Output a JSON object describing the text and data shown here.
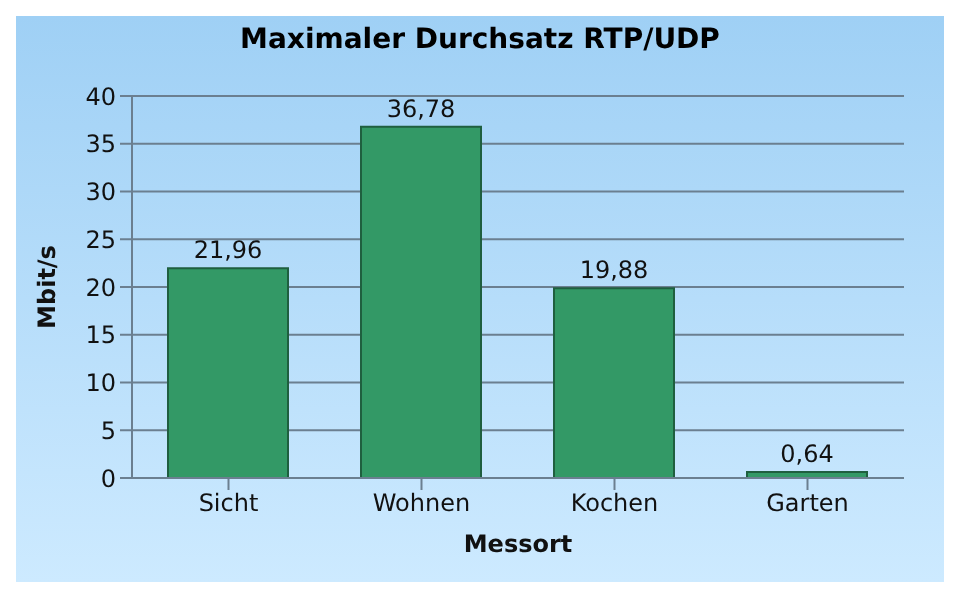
{
  "chart_data": {
    "type": "bar",
    "title": "Maximaler Durchsatz RTP/UDP",
    "xlabel": "Messort",
    "ylabel": "Mbit/s",
    "categories": [
      "Sicht",
      "Wohnen",
      "Kochen",
      "Garten"
    ],
    "values": [
      21.96,
      36.78,
      19.88,
      0.64
    ],
    "value_labels": [
      "21,96",
      "36,78",
      "19,88",
      "0,64"
    ],
    "color": "#339966",
    "ylim": [
      0,
      40
    ],
    "yticks": [
      0,
      5,
      10,
      15,
      20,
      25,
      30,
      35,
      40
    ],
    "grid": "y"
  }
}
